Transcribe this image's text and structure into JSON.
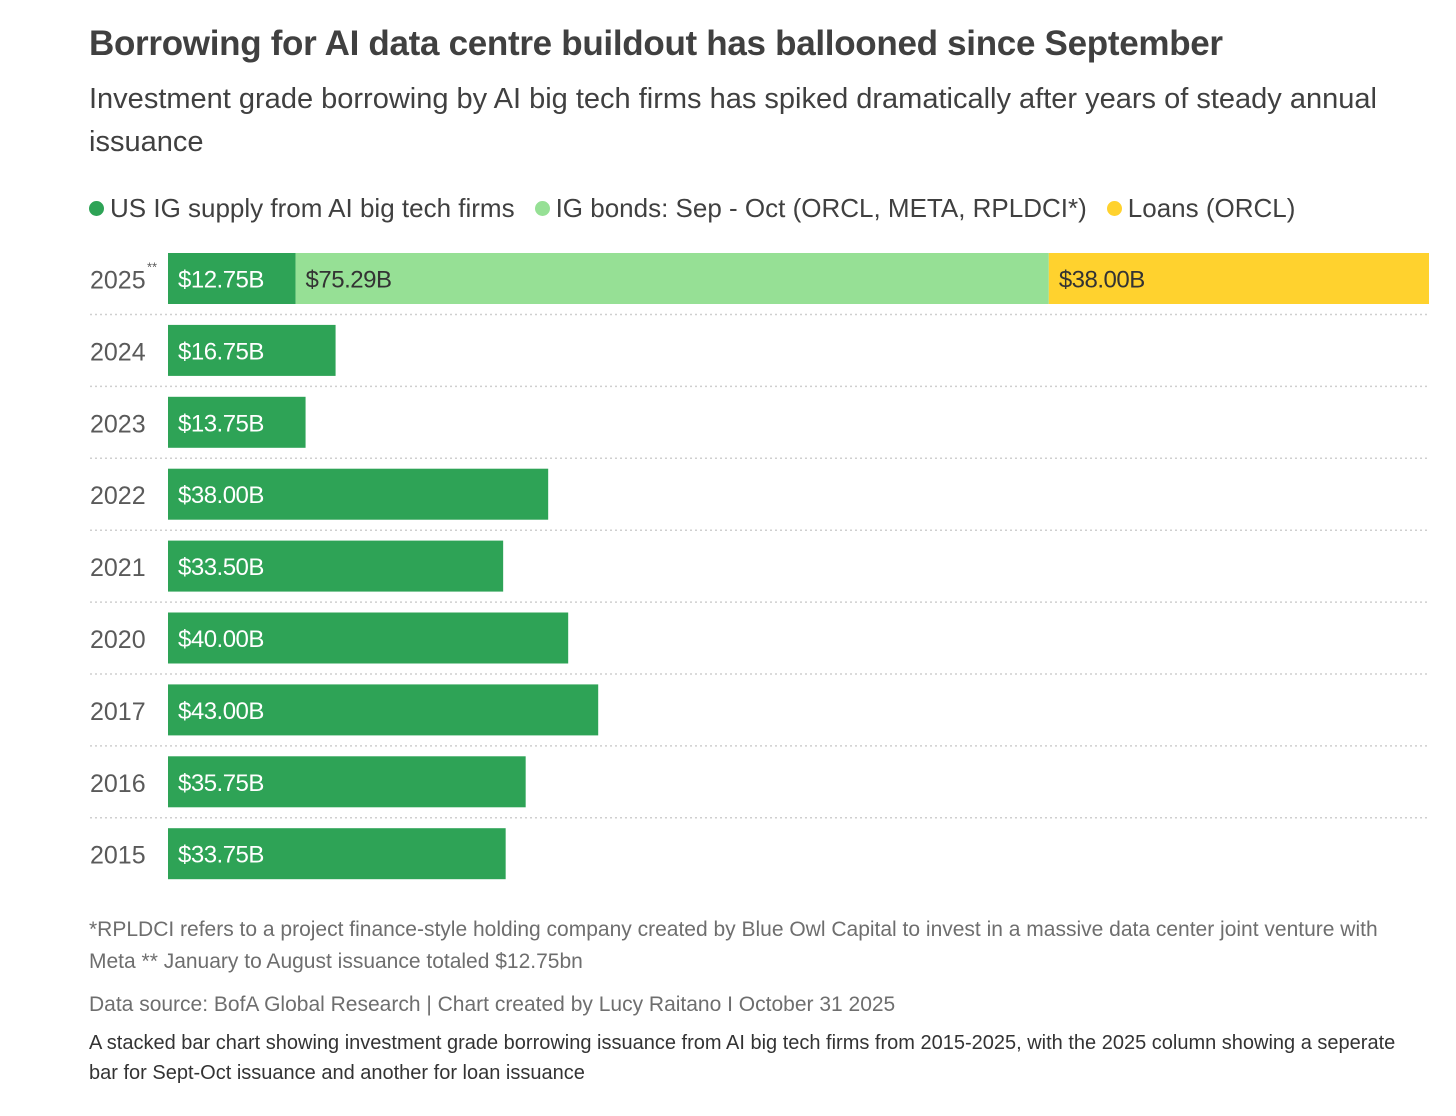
{
  "title": "Borrowing for AI data centre buildout has ballooned since September",
  "subtitle": "Investment grade borrowing by AI big tech firms has spiked dramatically after years of steady annual issuance",
  "legend": [
    {
      "label": "US IG supply from AI big tech firms",
      "color": "#2ea356"
    },
    {
      "label": "IG bonds: Sep - Oct (ORCL, META, RPLDCI*)",
      "color": "#96e095"
    },
    {
      "label": "Loans (ORCL)",
      "color": "#ffd22e"
    }
  ],
  "chart_data": {
    "type": "bar",
    "orientation": "horizontal",
    "stacked": true,
    "categories": [
      "2025",
      "2024",
      "2023",
      "2022",
      "2021",
      "2020",
      "2017",
      "2016",
      "2015"
    ],
    "category_marks": [
      "**",
      "",
      "",
      "",
      "",
      "",
      "",
      "",
      ""
    ],
    "series": [
      {
        "name": "US IG supply from AI big tech firms",
        "color": "#2ea356",
        "values": [
          12.75,
          16.75,
          13.75,
          38.0,
          33.5,
          40.0,
          43.0,
          35.75,
          33.75
        ],
        "labels": [
          "$12.75B",
          "$16.75B",
          "$13.75B",
          "$38.00B",
          "$33.50B",
          "$40.00B",
          "$43.00B",
          "$35.75B",
          "$33.75B"
        ],
        "label_color": "#ffffff"
      },
      {
        "name": "IG bonds: Sep - Oct (ORCL, META, RPLDCI*)",
        "color": "#96e095",
        "values": [
          75.29,
          0,
          0,
          0,
          0,
          0,
          0,
          0,
          0
        ],
        "labels": [
          "$75.29B",
          "",
          "",
          "",
          "",
          "",
          "",
          "",
          ""
        ],
        "label_color": "#333333"
      },
      {
        "name": "Loans (ORCL)",
        "color": "#ffd22e",
        "values": [
          38.0,
          0,
          0,
          0,
          0,
          0,
          0,
          0,
          0
        ],
        "labels": [
          "$38.00B",
          "",
          "",
          "",
          "",
          "",
          "",
          "",
          ""
        ],
        "label_color": "#333333"
      }
    ],
    "xlim": [
      0,
      126.04
    ],
    "grid": true,
    "legend_position": "top-left"
  },
  "notes": {
    "footnote": "*RPLDCI refers to a project finance-style holding company created by Blue Owl Capital to invest in a massive data center joint venture with Meta ** January to August issuance totaled $12.75bn",
    "source": "Data source: BofA Global Research | Chart created by Lucy Raitano I October 31 2025",
    "caption": "A stacked bar chart showing investment grade borrowing issuance from AI big tech firms from 2015-2025, with the 2025 column showing a seperate bar for Sept-Oct issuance and another for loan issuance"
  }
}
